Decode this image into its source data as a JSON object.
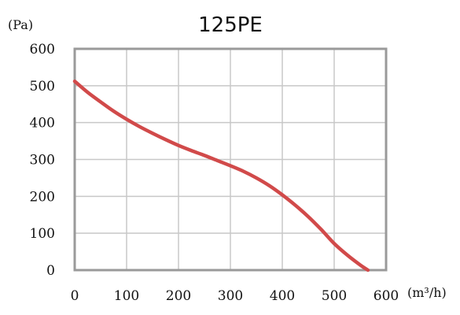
{
  "chart_data": {
    "type": "line",
    "title": "125PE",
    "ylabel": "(Pa)",
    "xlabel": "(m³/h)",
    "xlim": [
      0,
      600
    ],
    "ylim": [
      0,
      600
    ],
    "x_ticks": [
      "0",
      "100",
      "200",
      "300",
      "400",
      "500",
      "600"
    ],
    "y_ticks": [
      "0",
      "100",
      "200",
      "300",
      "400",
      "500",
      "600"
    ],
    "grid": true,
    "series": [
      {
        "color": "#d14a4a",
        "points": [
          [
            0,
            512
          ],
          [
            25,
            482
          ],
          [
            50,
            456
          ],
          [
            75,
            431
          ],
          [
            100,
            409
          ],
          [
            125,
            389
          ],
          [
            150,
            371
          ],
          [
            175,
            354
          ],
          [
            200,
            338
          ],
          [
            225,
            324
          ],
          [
            250,
            311
          ],
          [
            275,
            297
          ],
          [
            300,
            283
          ],
          [
            325,
            268
          ],
          [
            350,
            250
          ],
          [
            375,
            229
          ],
          [
            400,
            204
          ],
          [
            425,
            176
          ],
          [
            450,
            145
          ],
          [
            475,
            110
          ],
          [
            500,
            72
          ],
          [
            525,
            41
          ],
          [
            550,
            14
          ],
          [
            565,
            0
          ]
        ]
      }
    ]
  }
}
